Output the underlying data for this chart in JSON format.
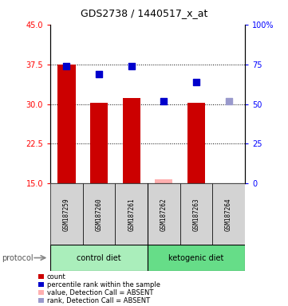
{
  "title": "GDS2738 / 1440517_x_at",
  "samples": [
    "GSM187259",
    "GSM187260",
    "GSM187261",
    "GSM187262",
    "GSM187263",
    "GSM187264"
  ],
  "bar_values": [
    37.5,
    30.2,
    31.2,
    15.8,
    30.3,
    15.0
  ],
  "bar_absent": [
    false,
    false,
    false,
    true,
    false,
    true
  ],
  "rank_values": [
    74.0,
    69.0,
    74.0,
    52.0,
    64.0,
    52.0
  ],
  "rank_absent": [
    false,
    false,
    false,
    false,
    false,
    true
  ],
  "ylim_left": [
    15,
    45
  ],
  "ylim_right": [
    0,
    100
  ],
  "yticks_left": [
    15,
    22.5,
    30,
    37.5,
    45
  ],
  "yticks_right": [
    0,
    25,
    50,
    75,
    100
  ],
  "bar_color_present": "#CC0000",
  "bar_color_absent": "#FFB0B0",
  "rank_color_present": "#0000CC",
  "rank_color_absent": "#9999CC",
  "bar_width": 0.55,
  "group_divider": 2.5,
  "control_label": "control diet",
  "ketogenic_label": "ketogenic diet",
  "control_color": "#AAEEBB",
  "ketogenic_color": "#66DD88",
  "legend_items": [
    {
      "color": "#CC0000",
      "label": "count"
    },
    {
      "color": "#0000CC",
      "label": "percentile rank within the sample"
    },
    {
      "color": "#FFB0B0",
      "label": "value, Detection Call = ABSENT"
    },
    {
      "color": "#9999CC",
      "label": "rank, Detection Call = ABSENT"
    }
  ]
}
